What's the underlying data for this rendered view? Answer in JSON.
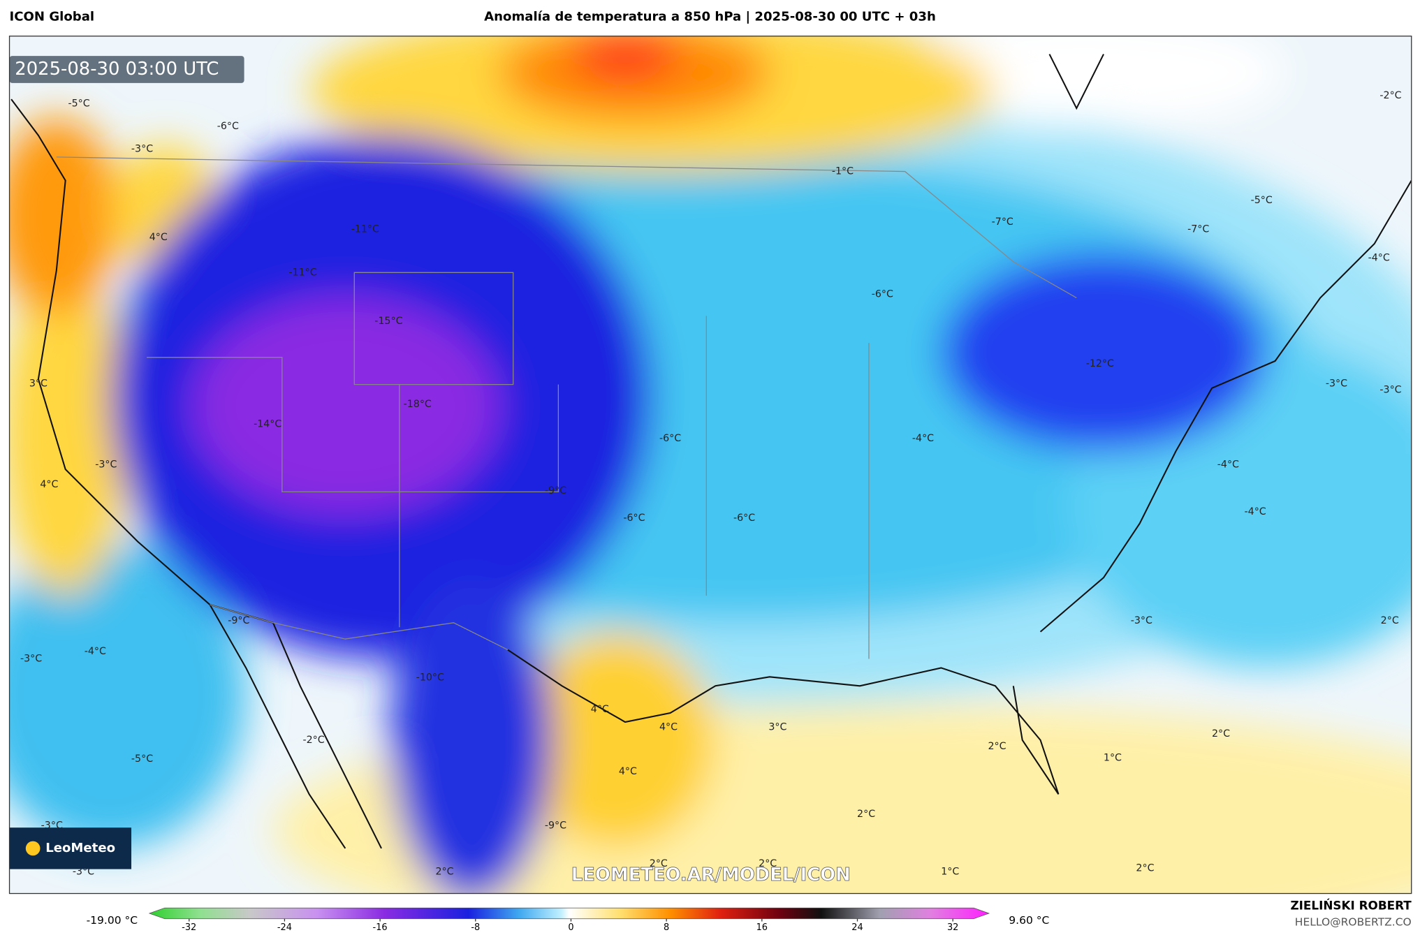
{
  "header": {
    "model": "ICON Global",
    "title": "Anomalía de temperatura a 850 hPa | 2025-08-30 00 UTC + 03h"
  },
  "map": {
    "timestamp": "2025-08-30 03:00 UTC",
    "logo": "LeoMeteo",
    "watermark": "LEOMETEO.AR/MODEL/ICON",
    "labels": [
      "-5°C",
      "-6°C",
      "-3°C",
      "4°C",
      "-11°C",
      "-11°C",
      "-15°C",
      "3°C",
      "-18°C",
      "-14°C",
      "-3°C",
      "4°C",
      "-9°C",
      "-6°C",
      "-6°C",
      "-6°C",
      "-1°C",
      "-7°C",
      "-5°C",
      "-7°C",
      "-2°C",
      "-4°C",
      "-6°C",
      "-12°C",
      "-3°C",
      "-3°C",
      "-4°C",
      "-4°C",
      "-4°C",
      "-9°C",
      "-3°C",
      "-4°C",
      "-10°C",
      "-3°C",
      "2°C",
      "4°C",
      "4°C",
      "3°C",
      "2°C",
      "2°C",
      "1°C",
      "-2°C",
      "-5°C",
      "4°C",
      "2°C",
      "-3°C",
      "-9°C",
      "2°C",
      "2°C",
      "-3°C",
      "2°C",
      "1°C",
      "2°C"
    ]
  },
  "colorbar": {
    "min_label": "-19.00 °C",
    "max_label": "9.60 °C",
    "ticks": [
      -32,
      -24,
      -16,
      -8,
      0,
      8,
      16,
      24,
      32
    ]
  },
  "footer": {
    "author": "ZIELIŃSKI ROBERT",
    "email": "HELLO@ROBERTZ.CO"
  }
}
